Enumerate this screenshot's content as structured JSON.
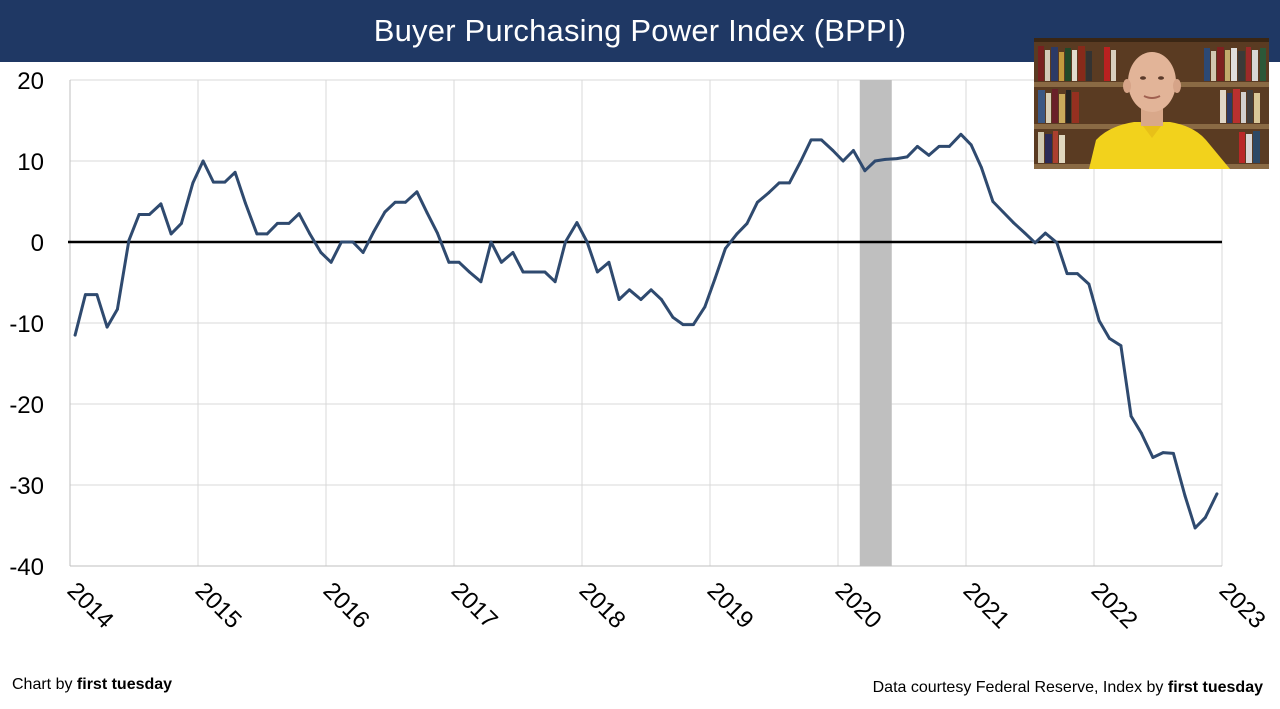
{
  "header": {
    "title": "Buyer Purchasing Power Index (BPPI)"
  },
  "footer": {
    "left_prefix": "Chart by ",
    "left_brand": "first tuesday",
    "right_prefix": "Data courtesy Federal Reserve, Index by ",
    "right_brand": "first tuesday"
  },
  "colors": {
    "header_bg": "#1f3864",
    "series_line": "#2f4a6f",
    "recession_shade": "#bfbfbf",
    "zero_line": "#000000",
    "grid": "#d9d9d9"
  },
  "chart_data": {
    "type": "line",
    "title": "Buyer Purchasing Power Index (BPPI)",
    "xlim": [
      2014,
      2023
    ],
    "ylim": [
      -40,
      20
    ],
    "y_ticks": [
      "20",
      "10",
      "0",
      "-10",
      "-20",
      "-30",
      "-40"
    ],
    "x_ticks": [
      "2014",
      "2015",
      "2016",
      "2017",
      "2018",
      "2019",
      "2020",
      "2021",
      "2022",
      "2023"
    ],
    "grid": true,
    "shaded_band": {
      "from": 2020.17,
      "to": 2020.42
    },
    "series": [
      {
        "x": [
          2014.04,
          2014.12,
          2014.21,
          2014.29,
          2014.37,
          2014.46,
          2014.54,
          2014.62,
          2014.71,
          2014.79,
          2014.87,
          2014.96,
          2015.04,
          2015.12,
          2015.21,
          2015.29,
          2015.37,
          2015.46,
          2015.54,
          2015.62,
          2015.71,
          2015.79,
          2015.87,
          2015.96,
          2016.04,
          2016.12,
          2016.21,
          2016.29,
          2016.37,
          2016.46,
          2016.54,
          2016.62,
          2016.71,
          2016.79,
          2016.87,
          2016.96,
          2017.04,
          2017.12,
          2017.21,
          2017.29,
          2017.37,
          2017.46,
          2017.54,
          2017.62,
          2017.71,
          2017.79,
          2017.87,
          2017.96,
          2018.04,
          2018.12,
          2018.21,
          2018.29,
          2018.37,
          2018.46,
          2018.54,
          2018.62,
          2018.71,
          2018.79,
          2018.87,
          2018.96,
          2019.04,
          2019.12,
          2019.21,
          2019.29,
          2019.37,
          2019.46,
          2019.54,
          2019.62,
          2019.71,
          2019.79,
          2019.87,
          2019.96,
          2020.04,
          2020.12,
          2020.21,
          2020.29,
          2020.37,
          2020.46,
          2020.54,
          2020.62,
          2020.71,
          2020.79,
          2020.87,
          2020.96,
          2021.04,
          2021.12,
          2021.21,
          2021.29,
          2021.37,
          2021.46,
          2021.54,
          2021.62,
          2021.71,
          2021.79,
          2021.87,
          2021.96,
          2022.04,
          2022.12,
          2022.21,
          2022.29,
          2022.37,
          2022.46,
          2022.54,
          2022.62,
          2022.71,
          2022.79,
          2022.87,
          2022.96
        ],
        "values": [
          -11.5,
          -6.5,
          -6.5,
          -10.5,
          -8.3,
          0.2,
          3.4,
          3.4,
          4.7,
          1,
          2.3,
          7.3,
          10,
          7.4,
          7.4,
          8.6,
          4.8,
          1,
          1,
          2.3,
          2.3,
          3.5,
          1.1,
          -1.3,
          -2.5,
          0,
          0,
          -1.3,
          1.2,
          3.7,
          4.9,
          4.9,
          6.2,
          3.6,
          1.1,
          -2.5,
          -2.5,
          -3.7,
          -4.9,
          0,
          -2.5,
          -1.3,
          -3.7,
          -3.7,
          -3.7,
          -4.9,
          0,
          2.4,
          0,
          -3.7,
          -2.5,
          -7.1,
          -5.9,
          -7.1,
          -5.9,
          -7.1,
          -9.3,
          -10.2,
          -10.2,
          -8,
          -4.5,
          -0.8,
          1,
          2.3,
          4.9,
          6.1,
          7.3,
          7.3,
          10,
          12.6,
          12.6,
          11.3,
          10,
          11.3,
          8.8,
          10,
          10.2,
          10.3,
          10.5,
          11.8,
          10.7,
          11.8,
          11.8,
          13.3,
          12,
          9.2,
          5,
          3.7,
          2.4,
          1.1,
          -0.1,
          1.1,
          -0.1,
          -3.9,
          -3.9,
          -5.2,
          -9.7,
          -11.9,
          -12.8,
          -21.5,
          -23.6,
          -26.6,
          -26,
          -26.1,
          -31.3,
          -35.3,
          -34,
          -31.1
        ]
      }
    ]
  }
}
